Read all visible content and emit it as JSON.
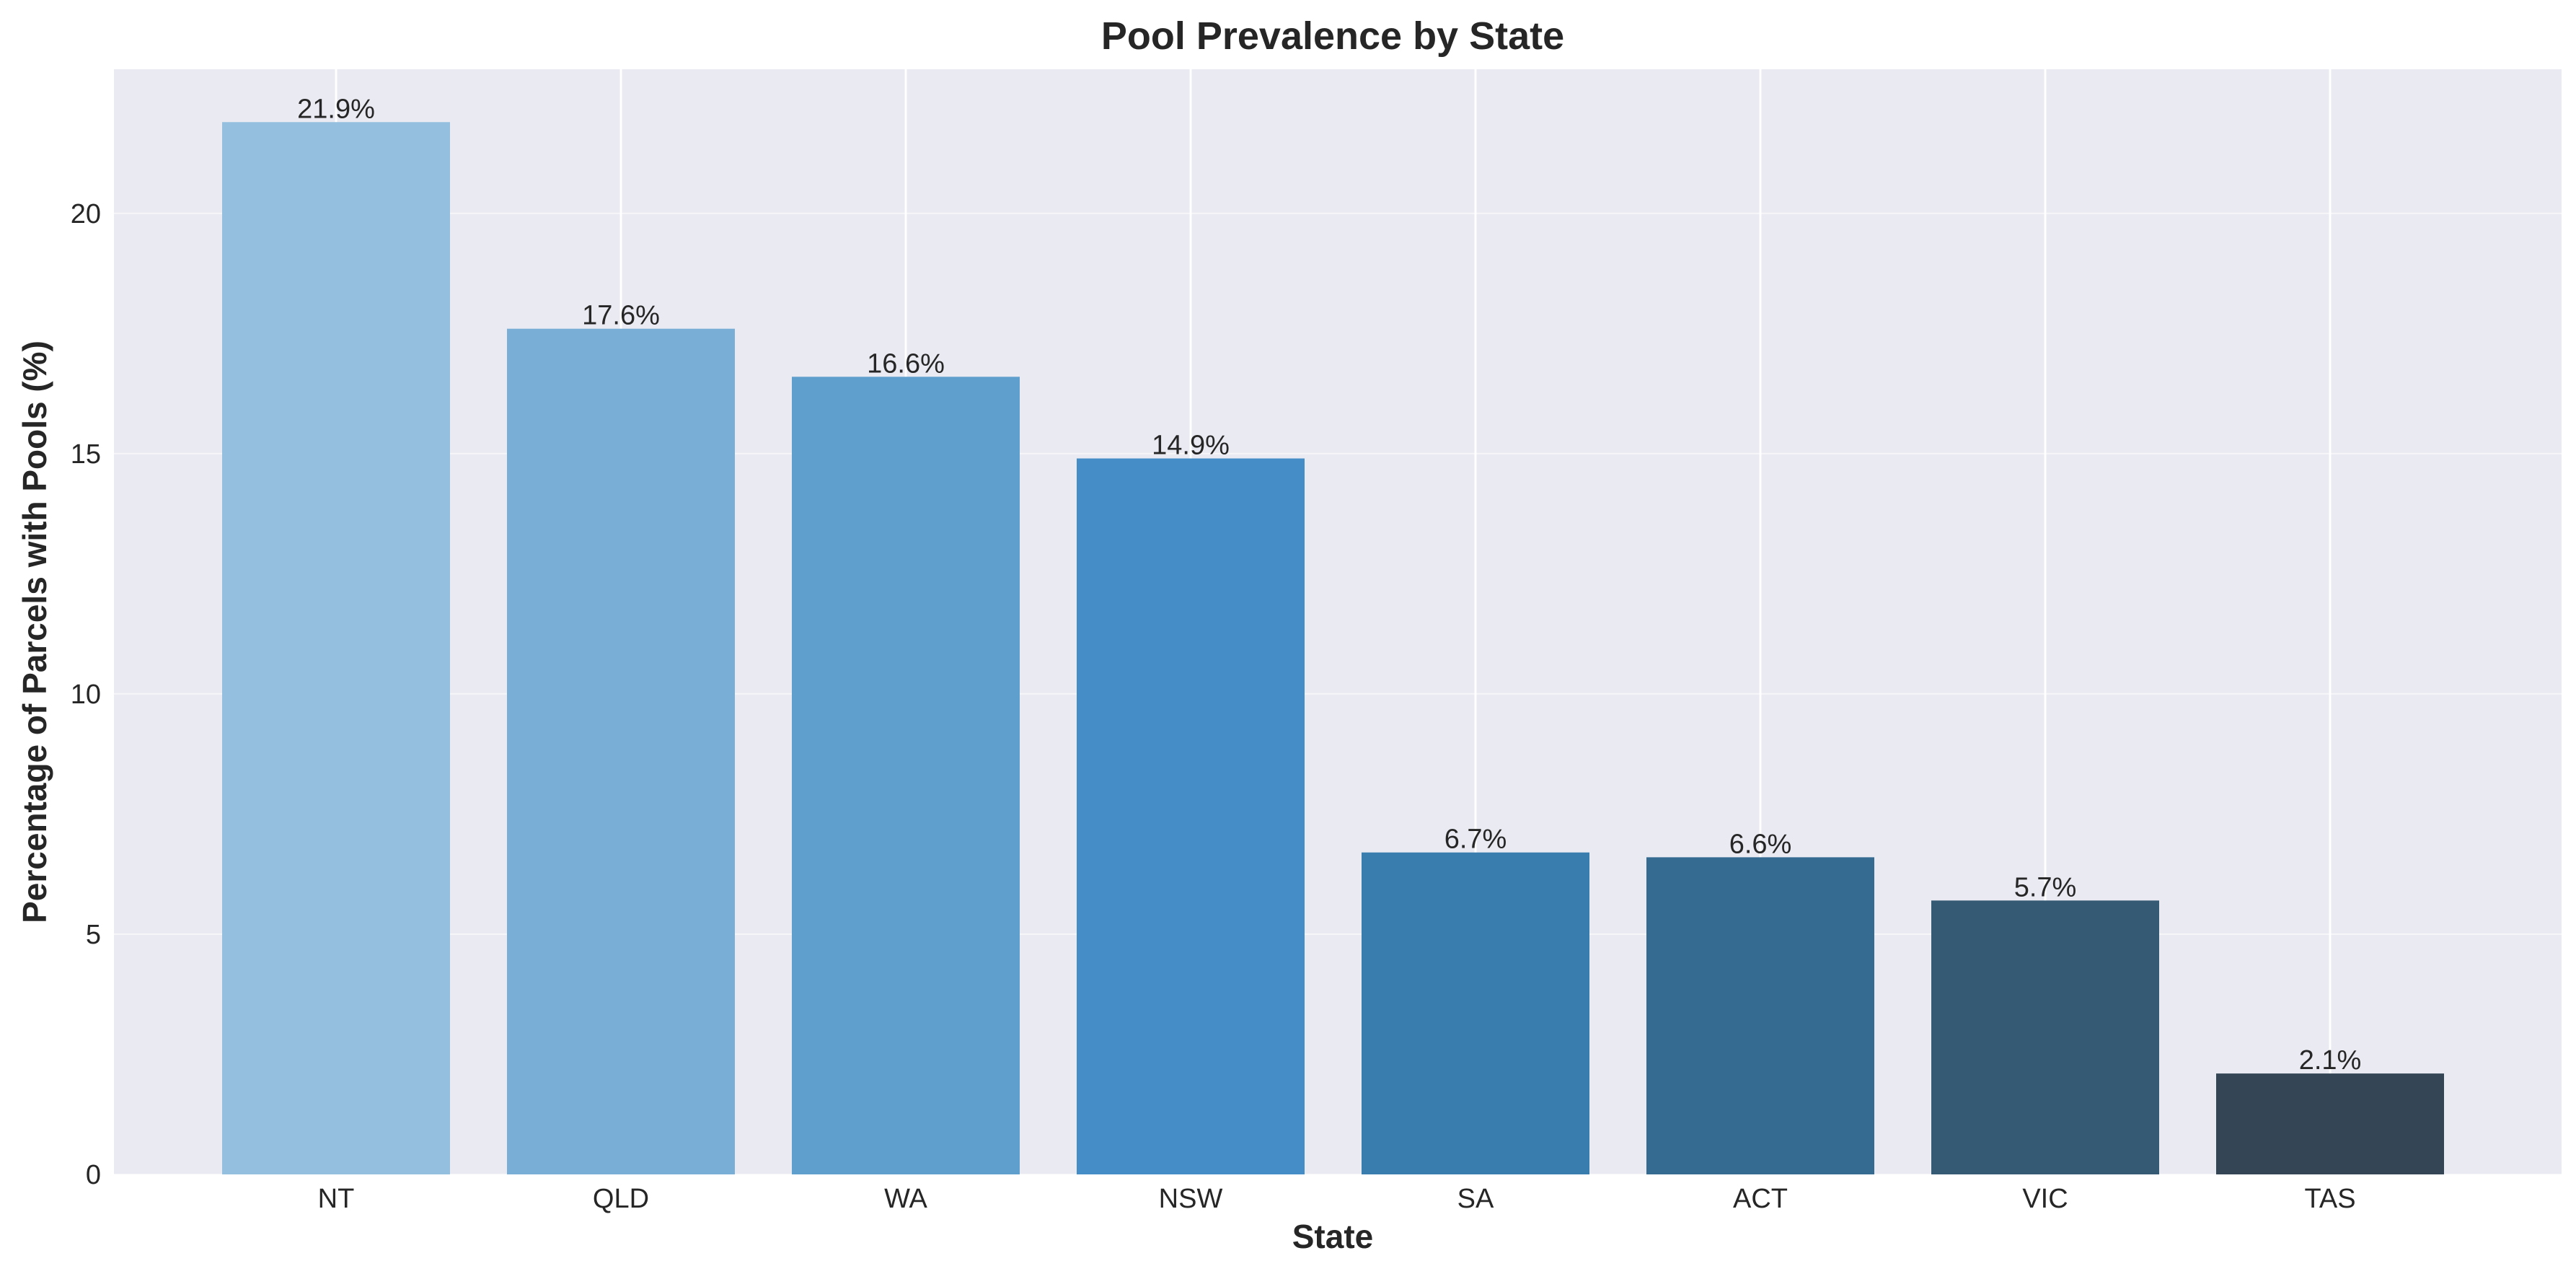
{
  "chart_data": {
    "type": "bar",
    "title": "Pool Prevalence by State",
    "xlabel": "State",
    "ylabel": "Percentage of Parcels with Pools (%)",
    "categories": [
      "NT",
      "QLD",
      "WA",
      "NSW",
      "SA",
      "ACT",
      "VIC",
      "TAS"
    ],
    "values": [
      21.9,
      17.6,
      16.6,
      14.9,
      6.7,
      6.6,
      5.7,
      2.1
    ],
    "data_labels": [
      "21.9%",
      "17.6%",
      "16.6%",
      "14.9%",
      "6.7%",
      "6.6%",
      "5.7%",
      "2.1%"
    ],
    "bar_colors": [
      "#94bfde",
      "#79afd6",
      "#5f9fcd",
      "#448dc6",
      "#387dae",
      "#366b91",
      "#355a73",
      "#344655"
    ],
    "ylim": [
      0,
      23
    ],
    "yticks": [
      0,
      5,
      10,
      15,
      20
    ],
    "grid": true,
    "legend": "none",
    "background_color": "#eaeaf2",
    "grid_color": "#ffffff"
  }
}
